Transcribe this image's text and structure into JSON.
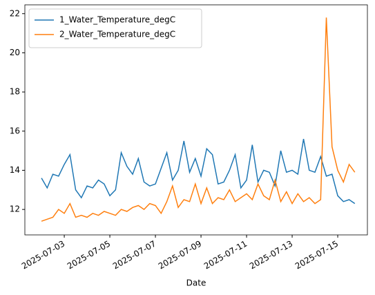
{
  "chart_data": {
    "type": "line",
    "xlabel": "Date",
    "x": [
      "2025-07-02T00:00",
      "2025-07-02T06:00",
      "2025-07-02T12:00",
      "2025-07-02T18:00",
      "2025-07-03T00:00",
      "2025-07-03T06:00",
      "2025-07-03T12:00",
      "2025-07-03T18:00",
      "2025-07-04T00:00",
      "2025-07-04T06:00",
      "2025-07-04T12:00",
      "2025-07-04T18:00",
      "2025-07-05T00:00",
      "2025-07-05T06:00",
      "2025-07-05T12:00",
      "2025-07-05T18:00",
      "2025-07-06T00:00",
      "2025-07-06T06:00",
      "2025-07-06T12:00",
      "2025-07-06T18:00",
      "2025-07-07T00:00",
      "2025-07-07T06:00",
      "2025-07-07T12:00",
      "2025-07-07T18:00",
      "2025-07-08T00:00",
      "2025-07-08T06:00",
      "2025-07-08T12:00",
      "2025-07-08T18:00",
      "2025-07-09T00:00",
      "2025-07-09T06:00",
      "2025-07-09T12:00",
      "2025-07-09T18:00",
      "2025-07-10T00:00",
      "2025-07-10T06:00",
      "2025-07-10T12:00",
      "2025-07-10T18:00",
      "2025-07-11T00:00",
      "2025-07-11T06:00",
      "2025-07-11T12:00",
      "2025-07-11T18:00",
      "2025-07-12T00:00",
      "2025-07-12T06:00",
      "2025-07-12T12:00",
      "2025-07-12T18:00",
      "2025-07-13T00:00",
      "2025-07-13T06:00",
      "2025-07-13T12:00",
      "2025-07-13T18:00",
      "2025-07-14T00:00",
      "2025-07-14T06:00",
      "2025-07-14T12:00",
      "2025-07-14T18:00",
      "2025-07-15T00:00",
      "2025-07-15T06:00",
      "2025-07-15T12:00",
      "2025-07-15T18:00"
    ],
    "series": [
      {
        "name": "1_Water_Temperature_degC",
        "color": "#1f77b4",
        "values": [
          13.6,
          13.1,
          13.8,
          13.7,
          14.3,
          14.8,
          13.0,
          12.6,
          13.2,
          13.1,
          13.5,
          13.3,
          12.7,
          13.0,
          14.9,
          14.2,
          13.8,
          14.6,
          13.4,
          13.2,
          13.3,
          14.1,
          14.9,
          13.5,
          14.0,
          15.5,
          13.9,
          14.6,
          13.7,
          15.1,
          14.8,
          13.3,
          13.4,
          14.0,
          14.8,
          13.1,
          13.5,
          15.3,
          13.4,
          14.0,
          13.9,
          13.2,
          15.0,
          13.9,
          14.0,
          13.8,
          15.6,
          14.0,
          13.9,
          14.7,
          13.7,
          13.8,
          12.7,
          12.4,
          12.5,
          12.3
        ]
      },
      {
        "name": "2_Water_Temperature_degC",
        "color": "#ff7f0e",
        "values": [
          11.4,
          11.5,
          11.6,
          12.0,
          11.8,
          12.3,
          11.6,
          11.7,
          11.6,
          11.8,
          11.7,
          11.9,
          11.8,
          11.7,
          12.0,
          11.9,
          12.1,
          12.2,
          12.0,
          12.3,
          12.2,
          11.8,
          12.4,
          13.2,
          12.1,
          12.5,
          12.4,
          13.3,
          12.3,
          13.1,
          12.3,
          12.6,
          12.5,
          13.0,
          12.4,
          12.6,
          12.8,
          12.5,
          13.3,
          12.7,
          12.5,
          13.5,
          12.4,
          12.9,
          12.3,
          12.8,
          12.4,
          12.6,
          12.3,
          12.5,
          21.8,
          15.2,
          14.0,
          13.4,
          14.3,
          13.9
        ]
      }
    ],
    "xlim": [
      "2025-07-01T06:30",
      "2025-07-16T07:15"
    ],
    "xticks": [
      "2025-07-03",
      "2025-07-05",
      "2025-07-07",
      "2025-07-09",
      "2025-07-11",
      "2025-07-13",
      "2025-07-15"
    ],
    "ylim": [
      10.7,
      22.45
    ],
    "yticks": [
      12,
      14,
      16,
      18,
      20,
      22
    ],
    "legend": "upper left"
  }
}
